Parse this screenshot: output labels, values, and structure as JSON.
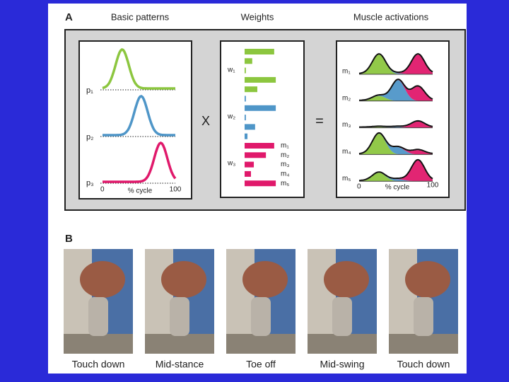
{
  "figure": {
    "panel_a": {
      "label": "A",
      "headings": [
        "Basic patterns",
        "Weights",
        "Muscle activations"
      ],
      "patterns": [
        "p₁",
        "p₂",
        "p₃"
      ],
      "pattern_axis": [
        "0",
        "% cycle",
        "100"
      ],
      "operators": [
        "X",
        "="
      ],
      "weights": [
        {
          "name": "w₁",
          "color": "#8cc63f",
          "values": [
            0.93,
            0.24,
            0.04,
            0.98,
            0.4
          ]
        },
        {
          "name": "w₂",
          "color": "#4f96c8",
          "values": [
            0.04,
            0.98,
            0.04,
            0.33,
            0.09
          ]
        },
        {
          "name": "w₃",
          "color": "#e0196b",
          "values": [
            0.93,
            0.67,
            0.29,
            0.2,
            0.98
          ]
        }
      ],
      "muscles": [
        "m₁",
        "m₂",
        "m₃",
        "m₄",
        "m₅"
      ],
      "activation_axis": [
        "0",
        "% cycle",
        "100"
      ]
    },
    "panel_b": {
      "label": "B",
      "captions": [
        "Touch down",
        "Mid-stance",
        "Toe off",
        "Mid-swing",
        "Touch down"
      ]
    }
  }
}
